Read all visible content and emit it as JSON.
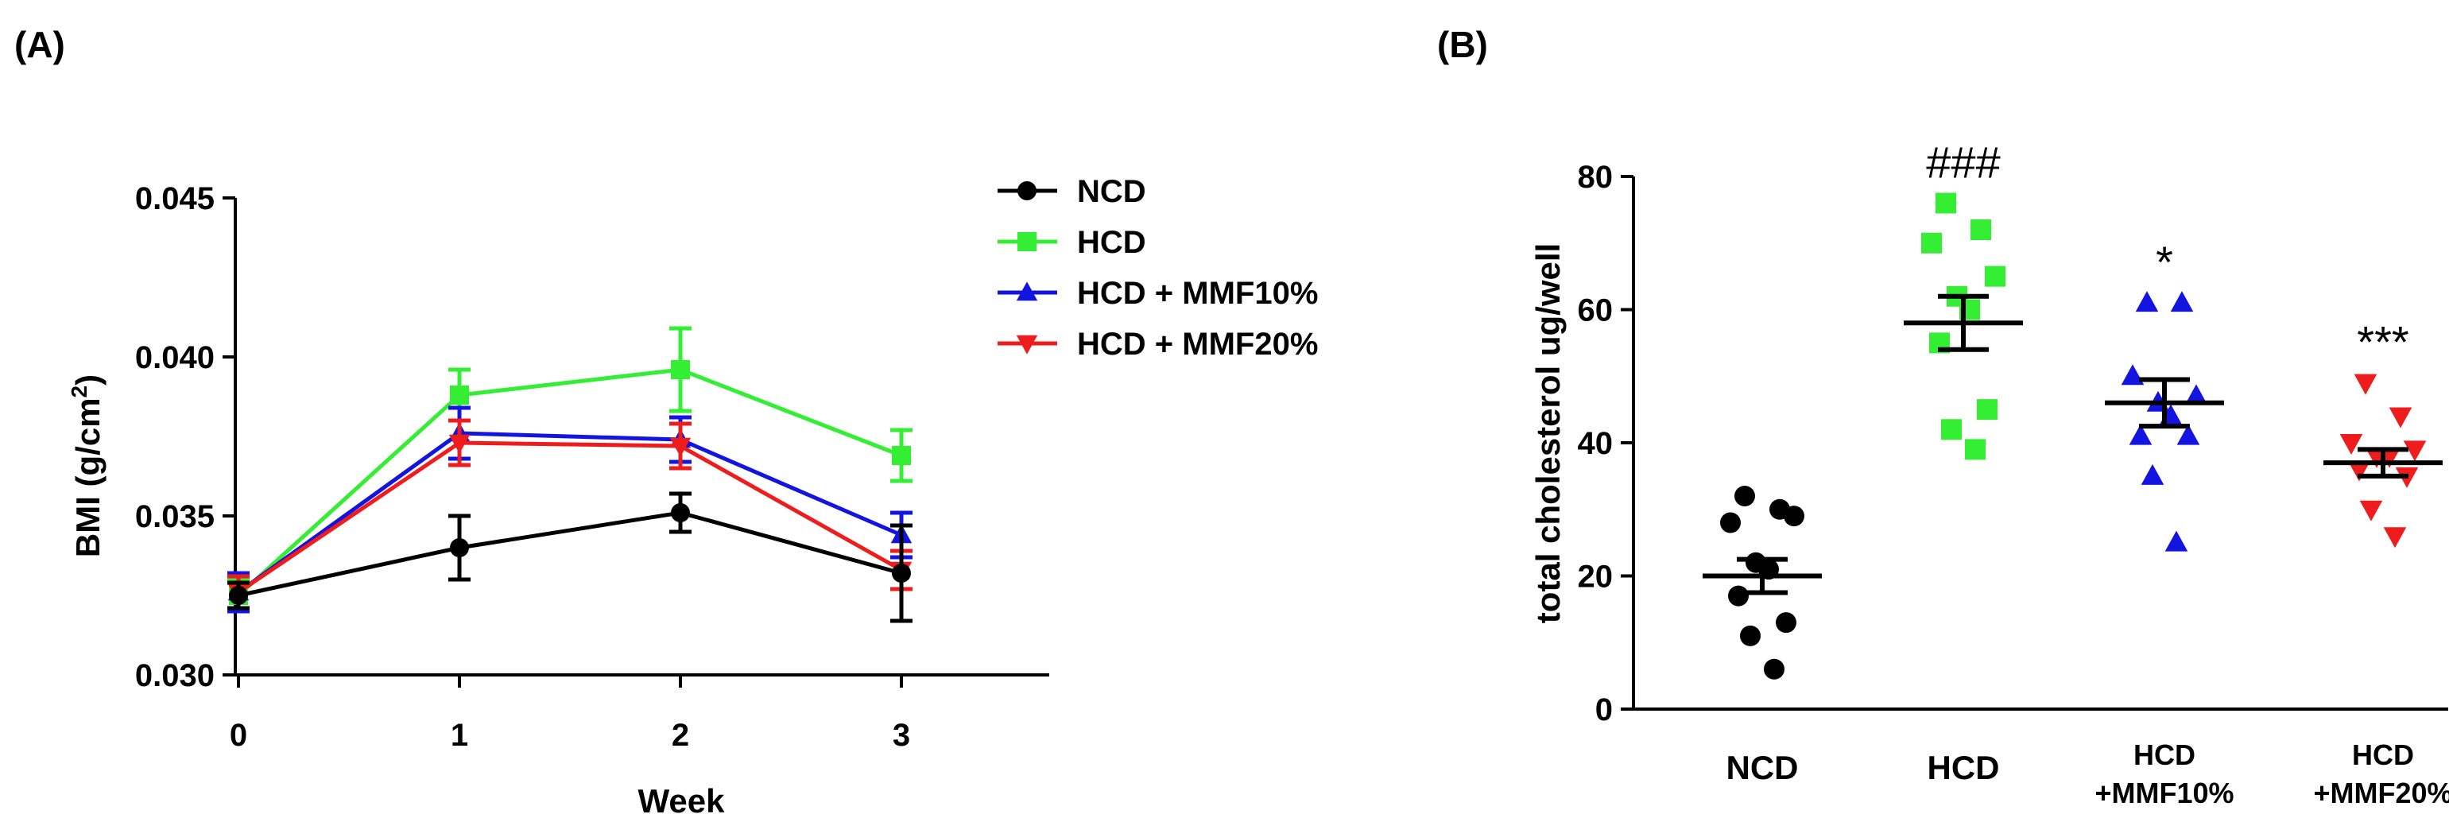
{
  "colors": {
    "axis": "#000000",
    "NCD": "#000000",
    "HCD": "#33ee33",
    "HCD_MMF10": "#1414e0",
    "HCD_MMF20": "#ee1c1c"
  },
  "panels": {
    "a_label": "(A)",
    "b_label": "(B)"
  },
  "chart_data": [
    {
      "type": "line",
      "panel": "(A)",
      "xlabel": "Week",
      "ylabel_main": "BMI (g/cm",
      "ylabel_sup": "2",
      "ylabel_end": ")",
      "x": [
        0,
        1,
        2,
        3
      ],
      "x_tick_labels": [
        "0",
        "1",
        "2",
        "3"
      ],
      "ylim": [
        0.03,
        0.045
      ],
      "y_ticks": [
        0.03,
        0.035,
        0.04,
        0.045
      ],
      "y_tick_labels": [
        "0.030",
        "0.035",
        "0.040",
        "0.045"
      ],
      "legend_position": "top-right",
      "series": [
        {
          "key": "HCD",
          "name": "HCD",
          "marker": "square",
          "values": [
            0.0325,
            0.0388,
            0.0396,
            0.0369
          ],
          "errors": [
            0.0005,
            0.0008,
            0.0013,
            0.0008
          ]
        },
        {
          "key": "HCD_MMF10",
          "name": "HCD + MMF10%",
          "marker": "triangle-up",
          "values": [
            0.0326,
            0.0376,
            0.0374,
            0.0344
          ],
          "errors": [
            0.0006,
            0.0008,
            0.0007,
            0.0007
          ]
        },
        {
          "key": "HCD_MMF20",
          "name": "HCD + MMF20%",
          "marker": "triangle-down",
          "values": [
            0.0326,
            0.0373,
            0.0372,
            0.0333
          ],
          "errors": [
            0.0005,
            0.0007,
            0.0007,
            0.0006
          ]
        },
        {
          "key": "NCD",
          "name": "NCD",
          "marker": "circle",
          "values": [
            0.0325,
            0.034,
            0.0351,
            0.0332
          ],
          "errors": [
            0.0004,
            0.001,
            0.0006,
            0.0015
          ]
        }
      ]
    },
    {
      "type": "scatter",
      "panel": "(B)",
      "ylabel": "total cholesterol ug/well",
      "ylim": [
        0,
        80
      ],
      "y_ticks": [
        0,
        20,
        40,
        60,
        80
      ],
      "y_tick_labels": [
        "0",
        "20",
        "40",
        "60",
        "80"
      ],
      "groups": [
        {
          "key": "NCD",
          "label_lines": [
            "NCD"
          ],
          "marker": "circle",
          "mean": 20,
          "sem": 2.5,
          "significance": "",
          "points": [
            32,
            30,
            28,
            29,
            22,
            21,
            17,
            13,
            11,
            6
          ]
        },
        {
          "key": "HCD",
          "label_lines": [
            "HCD"
          ],
          "marker": "square",
          "mean": 58,
          "sem": 4,
          "significance": "###",
          "points": [
            76,
            72,
            70,
            65,
            62,
            60,
            55,
            45,
            42,
            39
          ]
        },
        {
          "key": "HCD_MMF10",
          "label_lines": [
            "HCD",
            "+MMF10%"
          ],
          "marker": "triangle-up",
          "mean": 46,
          "sem": 3.5,
          "significance": "*",
          "points": [
            61,
            61,
            50,
            47,
            46,
            44,
            41,
            41,
            35,
            25
          ]
        },
        {
          "key": "HCD_MMF20",
          "label_lines": [
            "HCD",
            "+MMF20%"
          ],
          "marker": "triangle-down",
          "mean": 37,
          "sem": 2,
          "significance": "***",
          "points": [
            49,
            44,
            40,
            39,
            38,
            38,
            36,
            35,
            30,
            26
          ]
        }
      ]
    }
  ]
}
